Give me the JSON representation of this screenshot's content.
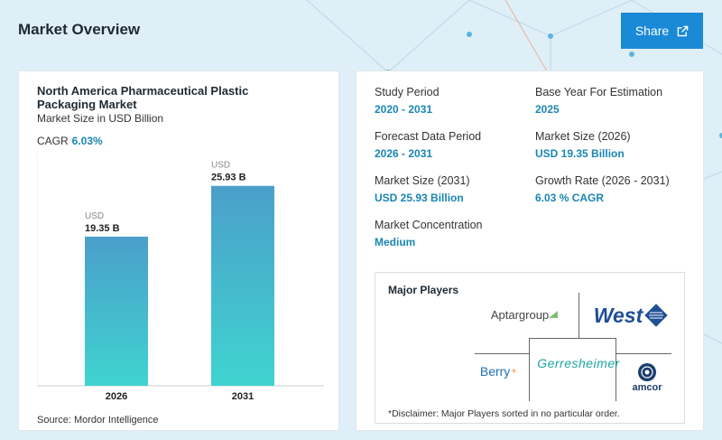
{
  "header": {
    "title": "Market Overview",
    "share_label": "Share"
  },
  "chart_card": {
    "title": "North America Pharmaceutical Plastic Packaging Market",
    "subtitle": "Market Size in USD Billion",
    "cagr_label": "CAGR",
    "cagr_value": "6.03%",
    "source": "Source: Mordor Intelligence"
  },
  "chart_data": {
    "type": "bar",
    "categories": [
      "2026",
      "2031"
    ],
    "values": [
      19.35,
      25.93
    ],
    "unit_label": "USD",
    "data_labels": [
      "19.35 B",
      "25.93 B"
    ],
    "ylim": [
      0,
      30
    ],
    "grid": false,
    "colors": {
      "bar_top": "#4b9fca",
      "bar_bottom": "#3fd4d0"
    }
  },
  "stats": [
    {
      "label": "Study Period",
      "value": "2020 - 2031"
    },
    {
      "label": "Base Year For Estimation",
      "value": "2025"
    },
    {
      "label": "Forecast Data Period",
      "value": "2026 - 2031"
    },
    {
      "label": "Market Size (2026)",
      "value": "USD 19.35 Billion"
    },
    {
      "label": "Market Size (2031)",
      "value": "USD 25.93 Billion"
    },
    {
      "label": "Growth Rate (2026 - 2031)",
      "value": "6.03 % CAGR"
    },
    {
      "label": "Market Concentration",
      "value": "Medium"
    }
  ],
  "players": {
    "title": "Major Players",
    "logos": [
      "Aptargroup",
      "West",
      "Berry",
      "Gerresheimer",
      "amcor"
    ],
    "disclaimer": "*Disclaimer: Major Players sorted in no particular order."
  },
  "colors": {
    "accent": "#1a86b4",
    "share_button": "#1a8ad6",
    "header_bg": "#dfeff7"
  },
  "icons": {
    "share": "external-link-icon"
  }
}
